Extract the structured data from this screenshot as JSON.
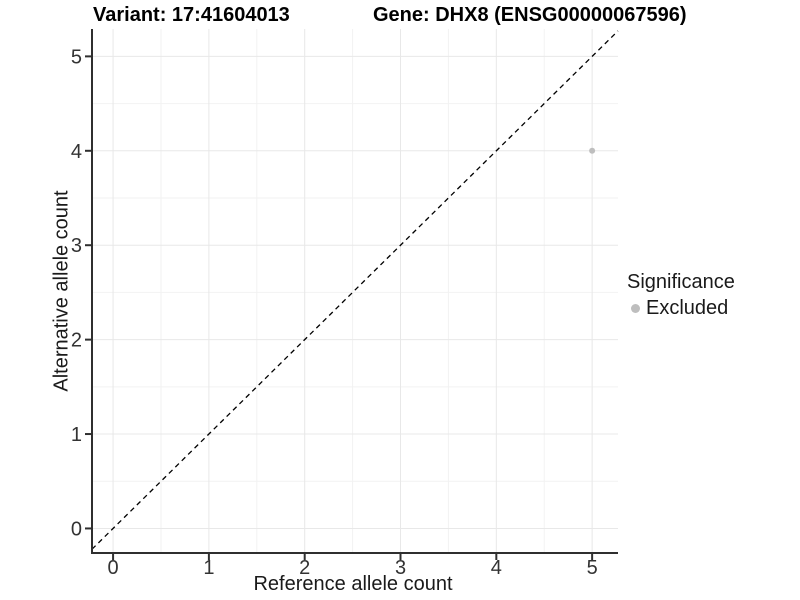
{
  "chart_data": {
    "type": "scatter",
    "title_left": "Variant: 17:41604013",
    "title_right": "Gene: DHX8 (ENSG00000067596)",
    "xlabel": "Reference allele count",
    "ylabel": "Alternative allele count",
    "xlim": [
      -0.22,
      5.27
    ],
    "ylim": [
      -0.26,
      5.29
    ],
    "xticks": [
      0,
      1,
      2,
      3,
      4,
      5
    ],
    "yticks": [
      0,
      1,
      2,
      3,
      4,
      5
    ],
    "grid": "major and minor gridlines on, white panel background",
    "reference_line": {
      "equation": "y = x",
      "slope": 1,
      "intercept": 0,
      "style": "dashed",
      "color": "#000000"
    },
    "series": [
      {
        "name": "Excluded",
        "color": "#bebebe",
        "points": [
          {
            "x": 5,
            "y": 4
          }
        ]
      }
    ],
    "legend": {
      "title": "Significance",
      "position": "right",
      "items": [
        {
          "label": "Excluded",
          "color": "#bebebe"
        }
      ]
    }
  },
  "colors": {
    "background": "#ffffff",
    "grid_major": "#e8e8e8",
    "grid_minor": "#f2f2f2",
    "axis_line": "#2f2f2f",
    "tick_text": "#333333",
    "title_text": "#000000",
    "point": "#bebebe"
  }
}
